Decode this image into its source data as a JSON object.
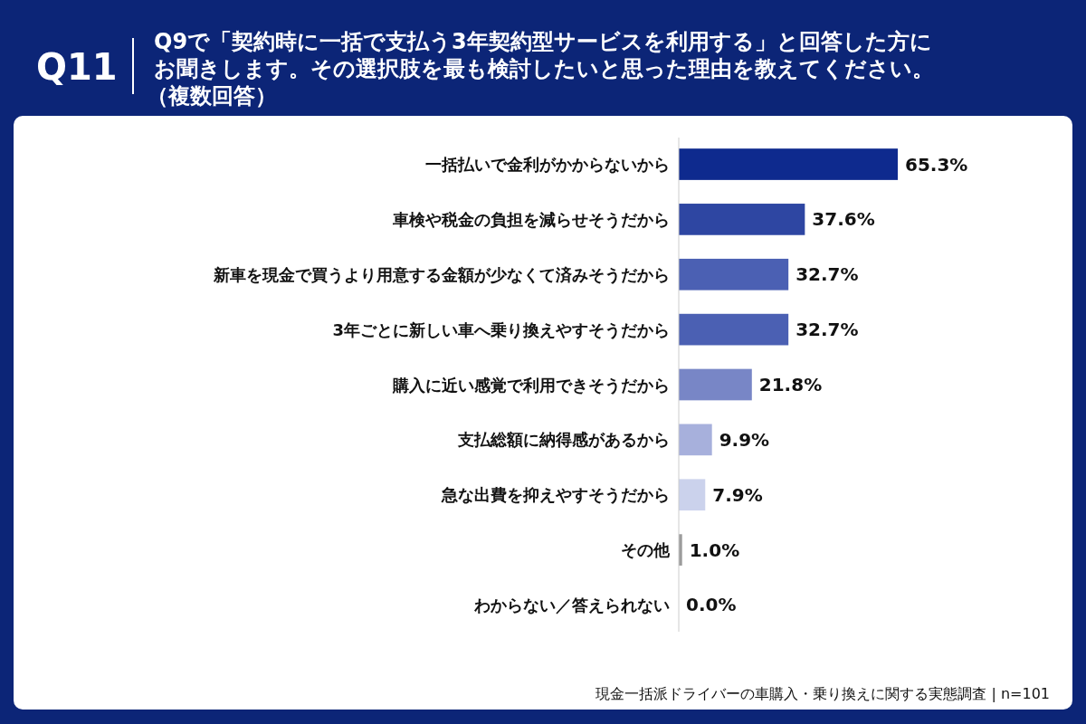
{
  "chart_data": {
    "type": "bar",
    "orientation": "horizontal",
    "title": "Q11",
    "subtitle": "Q9で「契約時に一括で支払う3年契約型サービスを利用する」と回答した方にお聞きします。その選択肢を最も検討したいと思った理由を教えてください。",
    "categories": [
      "一括払いで金利がかからないから",
      "車検や税金の負担を減らせそうだから",
      "新車を現金で買うより用意する金額が少なくて済みそうだから",
      "3年ごとに新しい車へ乗り換えやすそうだから",
      "購入に近い感覚で利用できそうだから",
      "支払総額に納得感があるから",
      "急な出費を抑えやすそうだから",
      "その他",
      "わからない／答えられない"
    ],
    "values": [
      65.3,
      37.6,
      32.7,
      32.7,
      21.8,
      9.9,
      7.9,
      1.0,
      0.0
    ],
    "colors": [
      "#0e2a8e",
      "#2e46a2",
      "#4b60b3",
      "#4b60b3",
      "#7886c6",
      "#a7b0dc",
      "#cbd2ec",
      "#9c9c9c",
      "#9c9c9c"
    ],
    "value_labels": [
      "65.3%",
      "37.6%",
      "32.7%",
      "32.7%",
      "21.8%",
      "9.9%",
      "7.9%",
      "1.0%",
      "0.0%"
    ],
    "annotations": [
      "（複数回答）",
      "現金一括派ドライバーの車購入・乗り換えに関する実態調査 | n=101"
    ]
  }
}
